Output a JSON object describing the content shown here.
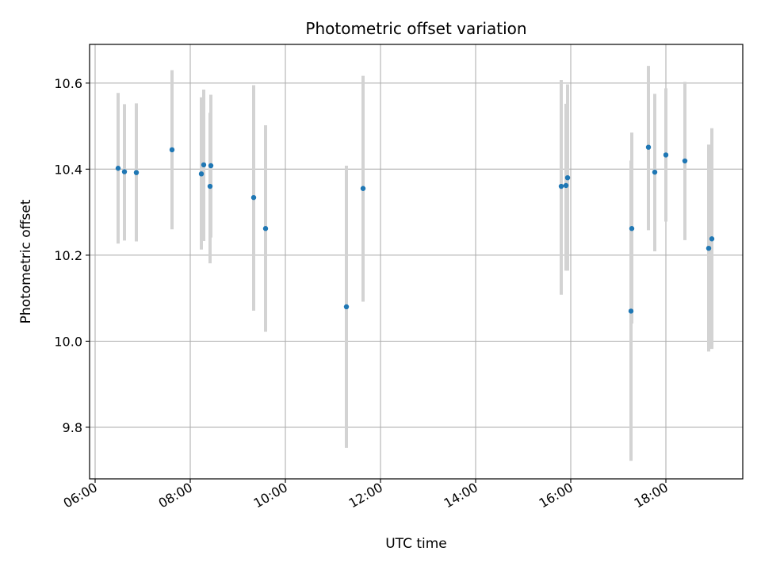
{
  "chart_data": {
    "type": "scatter",
    "title": "Photometric offset variation",
    "xlabel": "UTC time",
    "ylabel": "Photometric offset",
    "x_ticks": [
      "06:00",
      "08:00",
      "10:00",
      "12:00",
      "14:00",
      "16:00",
      "18:00"
    ],
    "y_ticks": [
      "9.8",
      "10.0",
      "10.2",
      "10.4",
      "10.6"
    ],
    "xlim": [
      "05:53",
      "19:37"
    ],
    "ylim": [
      9.68,
      10.69
    ],
    "grid": true,
    "colors": {
      "point": "#1f77b4",
      "errorbar": "#d3d3d3",
      "grid": "#b0b0b0"
    },
    "points": [
      {
        "x": "06:29",
        "y": 10.402,
        "ylow": 10.227,
        "yhigh": 10.577
      },
      {
        "x": "06:37",
        "y": 10.394,
        "ylow": 10.234,
        "yhigh": 10.551
      },
      {
        "x": "06:52",
        "y": 10.392,
        "ylow": 10.232,
        "yhigh": 10.553
      },
      {
        "x": "07:37",
        "y": 10.445,
        "ylow": 10.26,
        "yhigh": 10.63
      },
      {
        "x": "08:14",
        "y": 10.389,
        "ylow": 10.213,
        "yhigh": 10.567
      },
      {
        "x": "08:17",
        "y": 10.41,
        "ylow": 10.233,
        "yhigh": 10.585
      },
      {
        "x": "08:25",
        "y": 10.36,
        "ylow": 10.181,
        "yhigh": 10.531
      },
      {
        "x": "08:26",
        "y": 10.408,
        "ylow": 10.241,
        "yhigh": 10.573
      },
      {
        "x": "09:20",
        "y": 10.334,
        "ylow": 10.071,
        "yhigh": 10.595
      },
      {
        "x": "09:35",
        "y": 10.262,
        "ylow": 10.022,
        "yhigh": 10.502
      },
      {
        "x": "11:17",
        "y": 10.08,
        "ylow": 9.752,
        "yhigh": 10.408
      },
      {
        "x": "11:38",
        "y": 10.355,
        "ylow": 10.092,
        "yhigh": 10.617
      },
      {
        "x": "15:48",
        "y": 10.36,
        "ylow": 10.108,
        "yhigh": 10.607
      },
      {
        "x": "15:54",
        "y": 10.362,
        "ylow": 10.164,
        "yhigh": 10.552
      },
      {
        "x": "15:56",
        "y": 10.38,
        "ylow": 10.164,
        "yhigh": 10.597
      },
      {
        "x": "17:16",
        "y": 10.07,
        "ylow": 9.722,
        "yhigh": 10.42
      },
      {
        "x": "17:17",
        "y": 10.262,
        "ylow": 10.041,
        "yhigh": 10.485
      },
      {
        "x": "17:38",
        "y": 10.451,
        "ylow": 10.258,
        "yhigh": 10.64
      },
      {
        "x": "17:46",
        "y": 10.393,
        "ylow": 10.209,
        "yhigh": 10.575
      },
      {
        "x": "18:00",
        "y": 10.433,
        "ylow": 10.278,
        "yhigh": 10.588
      },
      {
        "x": "18:24",
        "y": 10.419,
        "ylow": 10.235,
        "yhigh": 10.603
      },
      {
        "x": "18:54",
        "y": 10.216,
        "ylow": 9.976,
        "yhigh": 10.457
      },
      {
        "x": "18:58",
        "y": 10.238,
        "ylow": 9.982,
        "yhigh": 10.495
      }
    ]
  }
}
